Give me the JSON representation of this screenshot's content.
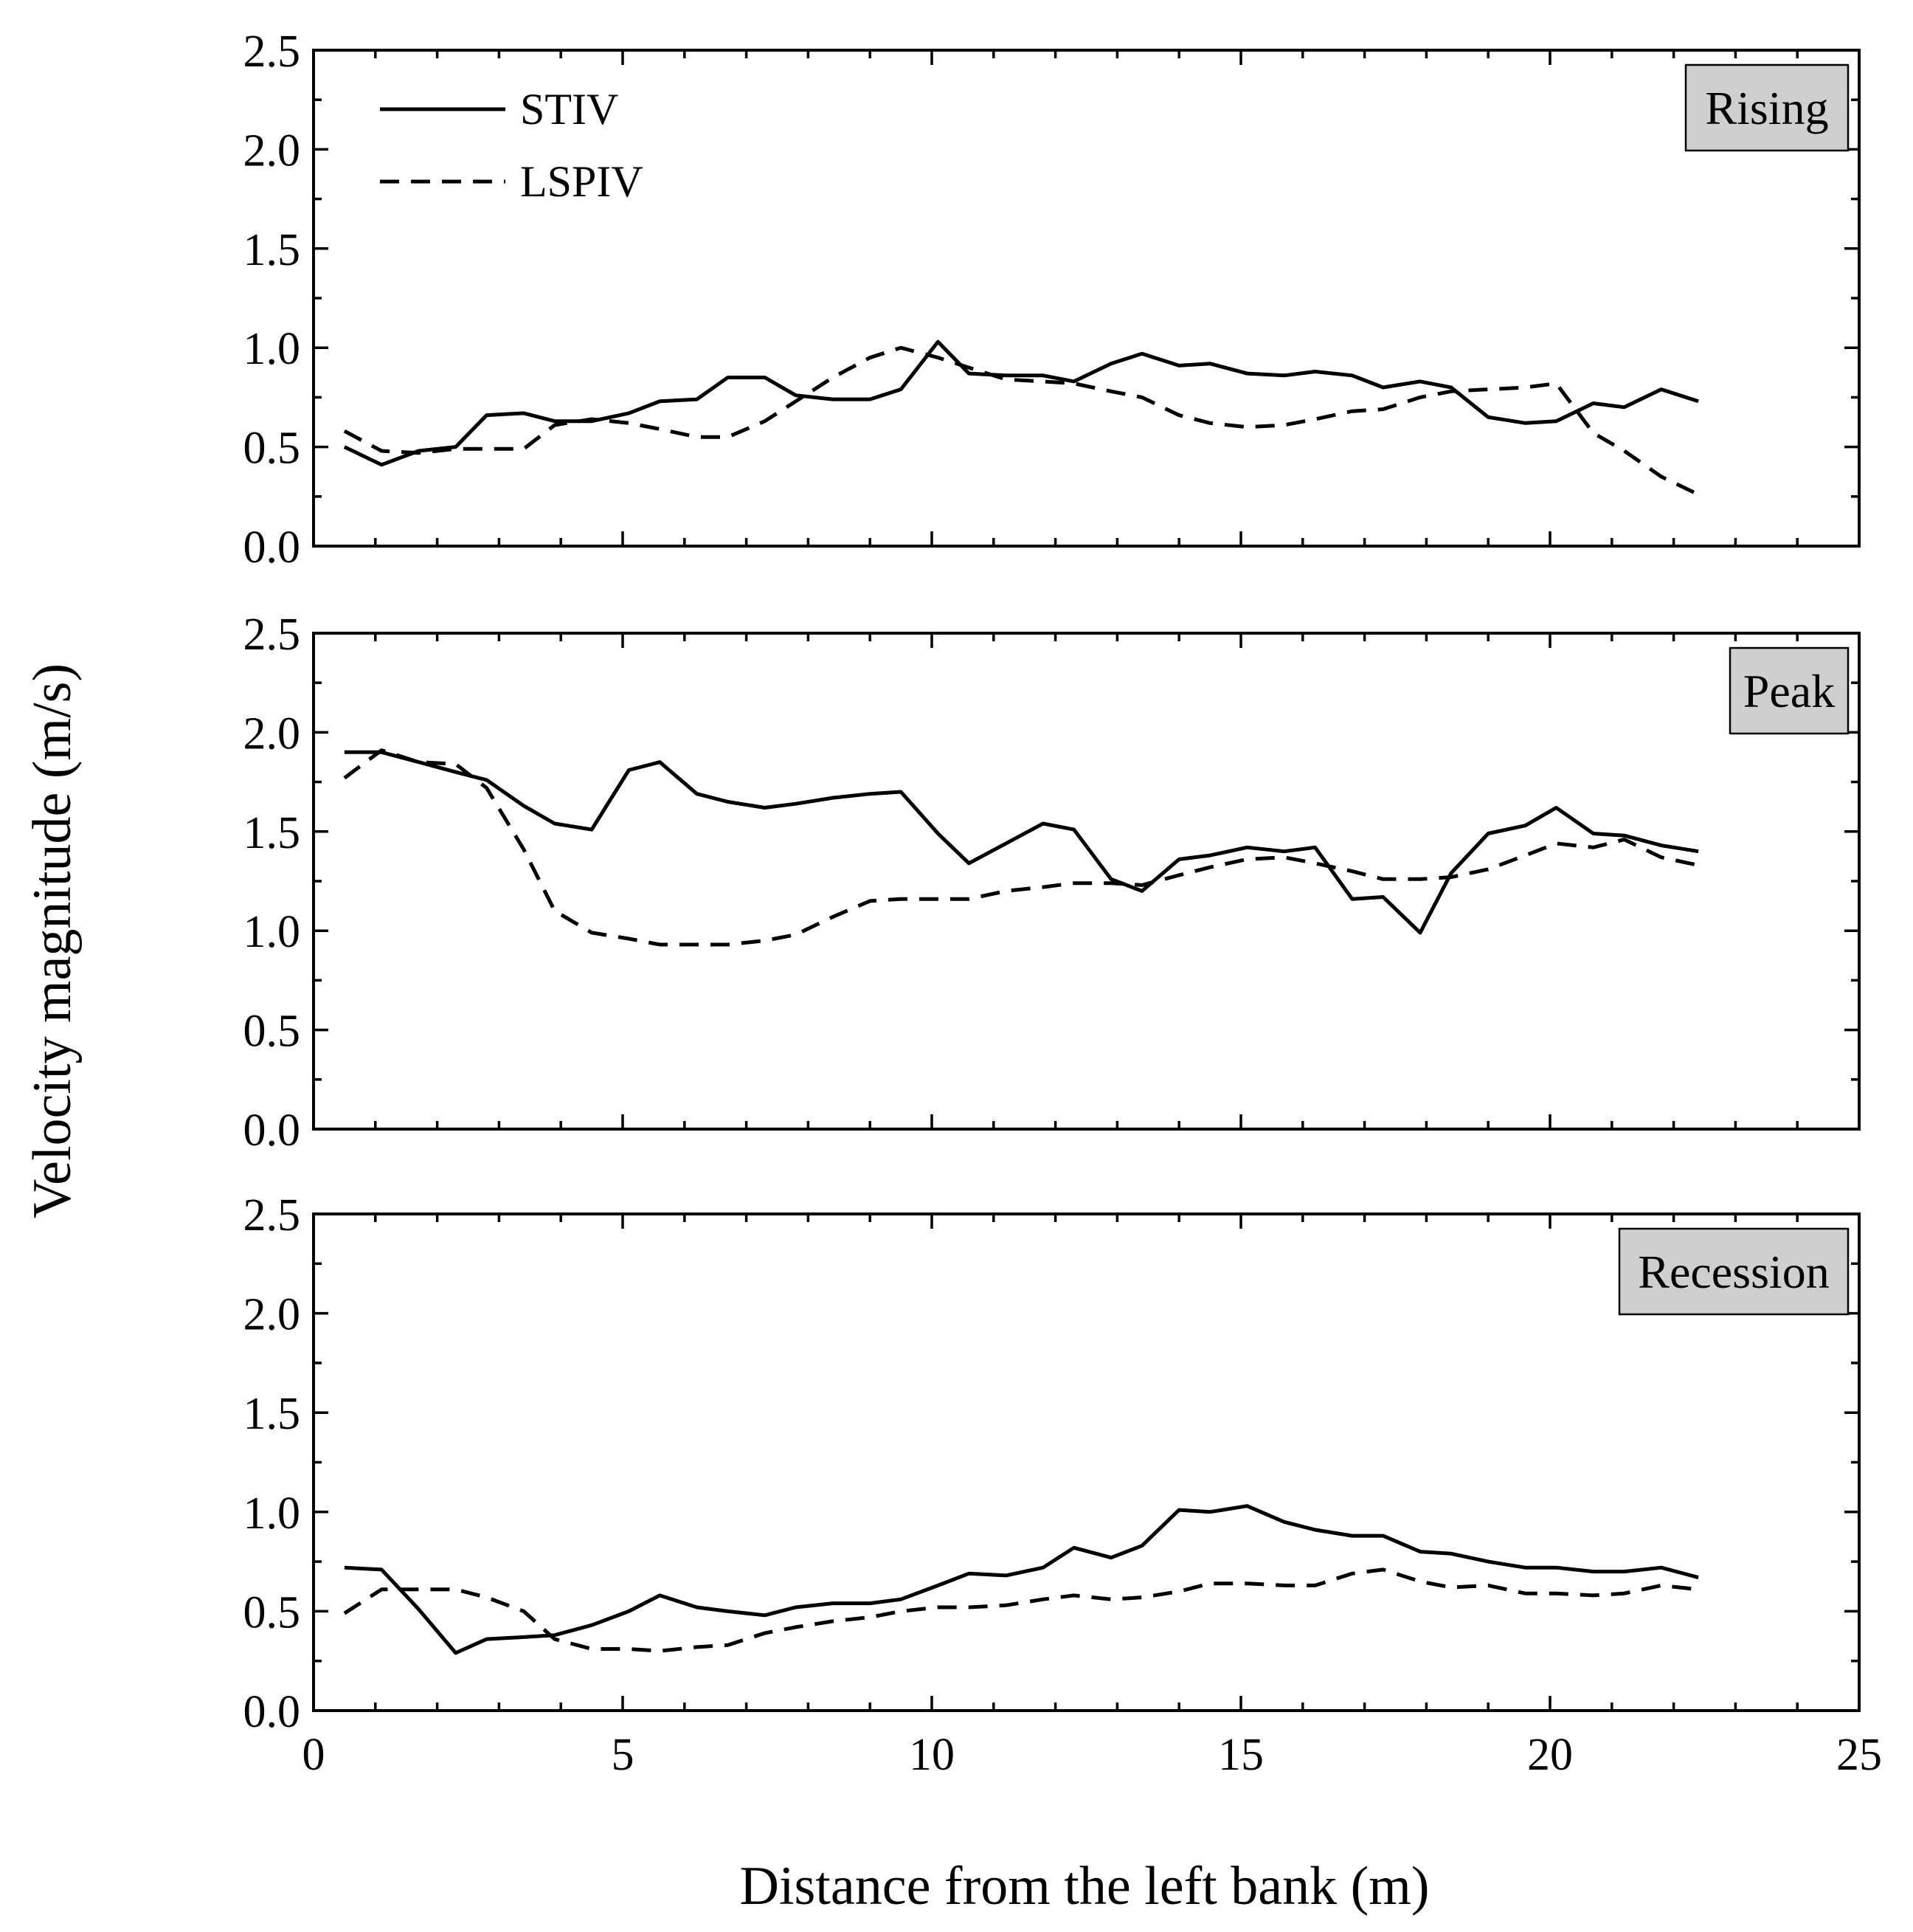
{
  "chart_data": {
    "type": "line",
    "ylabel": "Velocity magnitude (m/s)",
    "xlabel": "Distance from the left bank (m)",
    "xlim": [
      0,
      25
    ],
    "ylim": [
      0,
      2.5
    ],
    "x_ticks": [
      "0",
      "5",
      "10",
      "15",
      "20",
      "25"
    ],
    "y_ticks": [
      "0.0",
      "0.5",
      "1.0",
      "1.5",
      "2.0",
      "2.5"
    ],
    "legend": {
      "placement": "top-left",
      "entries": [
        {
          "name": "STIV",
          "style": "solid"
        },
        {
          "name": "LSPIV",
          "style": "dashed"
        }
      ]
    },
    "panels": [
      {
        "tag": "Rising",
        "series": [
          {
            "name": "STIV",
            "style": "solid",
            "points": [
              [
                0.5,
                0.5
              ],
              [
                1.1,
                0.41
              ],
              [
                1.7,
                0.48
              ],
              [
                2.3,
                0.5
              ],
              [
                2.8,
                0.66
              ],
              [
                3.4,
                0.67
              ],
              [
                3.9,
                0.63
              ],
              [
                4.5,
                0.63
              ],
              [
                5.1,
                0.67
              ],
              [
                5.6,
                0.73
              ],
              [
                6.2,
                0.74
              ],
              [
                6.7,
                0.85
              ],
              [
                7.3,
                0.85
              ],
              [
                7.8,
                0.76
              ],
              [
                8.4,
                0.74
              ],
              [
                9.0,
                0.74
              ],
              [
                9.5,
                0.79
              ],
              [
                10.1,
                1.03
              ],
              [
                10.6,
                0.87
              ],
              [
                11.2,
                0.86
              ],
              [
                11.8,
                0.86
              ],
              [
                12.3,
                0.83
              ],
              [
                12.9,
                0.92
              ],
              [
                13.4,
                0.97
              ],
              [
                14.0,
                0.91
              ],
              [
                14.5,
                0.92
              ],
              [
                15.1,
                0.87
              ],
              [
                15.7,
                0.86
              ],
              [
                16.2,
                0.88
              ],
              [
                16.8,
                0.86
              ],
              [
                17.3,
                0.8
              ],
              [
                17.9,
                0.83
              ],
              [
                18.4,
                0.8
              ],
              [
                19.0,
                0.65
              ],
              [
                19.6,
                0.62
              ],
              [
                20.1,
                0.63
              ],
              [
                20.7,
                0.72
              ],
              [
                21.2,
                0.7
              ],
              [
                21.8,
                0.79
              ],
              [
                22.4,
                0.73
              ]
            ]
          },
          {
            "name": "LSPIV",
            "style": "dashed",
            "points": [
              [
                0.5,
                0.58
              ],
              [
                1.1,
                0.48
              ],
              [
                1.7,
                0.47
              ],
              [
                2.3,
                0.49
              ],
              [
                2.8,
                0.49
              ],
              [
                3.4,
                0.49
              ],
              [
                3.9,
                0.61
              ],
              [
                4.5,
                0.64
              ],
              [
                5.1,
                0.62
              ],
              [
                5.6,
                0.59
              ],
              [
                6.2,
                0.55
              ],
              [
                6.7,
                0.55
              ],
              [
                7.3,
                0.63
              ],
              [
                7.8,
                0.73
              ],
              [
                8.4,
                0.85
              ],
              [
                9.0,
                0.95
              ],
              [
                9.5,
                1.0
              ],
              [
                10.1,
                0.95
              ],
              [
                10.6,
                0.9
              ],
              [
                11.2,
                0.84
              ],
              [
                11.8,
                0.83
              ],
              [
                12.3,
                0.82
              ],
              [
                12.9,
                0.78
              ],
              [
                13.4,
                0.75
              ],
              [
                14.0,
                0.66
              ],
              [
                14.5,
                0.62
              ],
              [
                15.1,
                0.6
              ],
              [
                15.7,
                0.61
              ],
              [
                16.2,
                0.64
              ],
              [
                16.8,
                0.68
              ],
              [
                17.3,
                0.69
              ],
              [
                17.9,
                0.75
              ],
              [
                18.4,
                0.78
              ],
              [
                19.0,
                0.79
              ],
              [
                19.6,
                0.8
              ],
              [
                20.1,
                0.82
              ],
              [
                20.7,
                0.57
              ],
              [
                21.2,
                0.48
              ],
              [
                21.8,
                0.35
              ],
              [
                22.4,
                0.26
              ]
            ]
          }
        ]
      },
      {
        "tag": "Peak",
        "series": [
          {
            "name": "STIV",
            "style": "solid",
            "points": [
              [
                0.5,
                1.9
              ],
              [
                1.1,
                1.9
              ],
              [
                1.7,
                1.85
              ],
              [
                2.3,
                1.8
              ],
              [
                2.8,
                1.76
              ],
              [
                3.4,
                1.63
              ],
              [
                3.9,
                1.54
              ],
              [
                4.5,
                1.51
              ],
              [
                5.1,
                1.81
              ],
              [
                5.6,
                1.85
              ],
              [
                6.2,
                1.69
              ],
              [
                6.7,
                1.65
              ],
              [
                7.3,
                1.62
              ],
              [
                7.8,
                1.64
              ],
              [
                8.4,
                1.67
              ],
              [
                9.0,
                1.69
              ],
              [
                9.5,
                1.7
              ],
              [
                10.1,
                1.49
              ],
              [
                10.6,
                1.34
              ],
              [
                11.2,
                1.44
              ],
              [
                11.8,
                1.54
              ],
              [
                12.3,
                1.51
              ],
              [
                12.9,
                1.26
              ],
              [
                13.4,
                1.2
              ],
              [
                14.0,
                1.36
              ],
              [
                14.5,
                1.38
              ],
              [
                15.1,
                1.42
              ],
              [
                15.7,
                1.4
              ],
              [
                16.2,
                1.42
              ],
              [
                16.8,
                1.16
              ],
              [
                17.3,
                1.17
              ],
              [
                17.9,
                0.99
              ],
              [
                18.4,
                1.29
              ],
              [
                19.0,
                1.49
              ],
              [
                19.6,
                1.53
              ],
              [
                20.1,
                1.62
              ],
              [
                20.7,
                1.49
              ],
              [
                21.2,
                1.48
              ],
              [
                21.8,
                1.43
              ],
              [
                22.4,
                1.4
              ]
            ]
          },
          {
            "name": "LSPIV",
            "style": "dashed",
            "points": [
              [
                0.5,
                1.77
              ],
              [
                1.1,
                1.91
              ],
              [
                1.7,
                1.85
              ],
              [
                2.3,
                1.84
              ],
              [
                2.8,
                1.72
              ],
              [
                3.4,
                1.41
              ],
              [
                3.9,
                1.1
              ],
              [
                4.5,
                0.99
              ],
              [
                5.1,
                0.96
              ],
              [
                5.6,
                0.93
              ],
              [
                6.2,
                0.93
              ],
              [
                6.7,
                0.93
              ],
              [
                7.3,
                0.95
              ],
              [
                7.8,
                0.98
              ],
              [
                8.4,
                1.07
              ],
              [
                9.0,
                1.15
              ],
              [
                9.5,
                1.16
              ],
              [
                10.1,
                1.16
              ],
              [
                10.6,
                1.16
              ],
              [
                11.2,
                1.2
              ],
              [
                11.8,
                1.22
              ],
              [
                12.3,
                1.24
              ],
              [
                12.9,
                1.24
              ],
              [
                13.4,
                1.23
              ],
              [
                14.0,
                1.28
              ],
              [
                14.5,
                1.32
              ],
              [
                15.1,
                1.36
              ],
              [
                15.7,
                1.37
              ],
              [
                16.2,
                1.34
              ],
              [
                16.8,
                1.3
              ],
              [
                17.3,
                1.26
              ],
              [
                17.9,
                1.26
              ],
              [
                18.4,
                1.27
              ],
              [
                19.0,
                1.31
              ],
              [
                19.6,
                1.38
              ],
              [
                20.1,
                1.44
              ],
              [
                20.7,
                1.42
              ],
              [
                21.2,
                1.46
              ],
              [
                21.8,
                1.37
              ],
              [
                22.4,
                1.33
              ]
            ]
          }
        ]
      },
      {
        "tag": "Recession",
        "series": [
          {
            "name": "STIV",
            "style": "solid",
            "points": [
              [
                0.5,
                0.72
              ],
              [
                1.1,
                0.71
              ],
              [
                1.7,
                0.51
              ],
              [
                2.3,
                0.29
              ],
              [
                2.8,
                0.36
              ],
              [
                3.4,
                0.37
              ],
              [
                3.9,
                0.38
              ],
              [
                4.5,
                0.43
              ],
              [
                5.1,
                0.5
              ],
              [
                5.6,
                0.58
              ],
              [
                6.2,
                0.52
              ],
              [
                6.7,
                0.5
              ],
              [
                7.3,
                0.48
              ],
              [
                7.8,
                0.52
              ],
              [
                8.4,
                0.54
              ],
              [
                9.0,
                0.54
              ],
              [
                9.5,
                0.56
              ],
              [
                10.1,
                0.63
              ],
              [
                10.6,
                0.69
              ],
              [
                11.2,
                0.68
              ],
              [
                11.8,
                0.72
              ],
              [
                12.3,
                0.82
              ],
              [
                12.9,
                0.77
              ],
              [
                13.4,
                0.83
              ],
              [
                14.0,
                1.01
              ],
              [
                14.5,
                1.0
              ],
              [
                15.1,
                1.03
              ],
              [
                15.7,
                0.95
              ],
              [
                16.2,
                0.91
              ],
              [
                16.8,
                0.88
              ],
              [
                17.3,
                0.88
              ],
              [
                17.9,
                0.8
              ],
              [
                18.4,
                0.79
              ],
              [
                19.0,
                0.75
              ],
              [
                19.6,
                0.72
              ],
              [
                20.1,
                0.72
              ],
              [
                20.7,
                0.7
              ],
              [
                21.2,
                0.7
              ],
              [
                21.8,
                0.72
              ],
              [
                22.4,
                0.67
              ]
            ]
          },
          {
            "name": "LSPIV",
            "style": "dashed",
            "points": [
              [
                0.5,
                0.49
              ],
              [
                1.1,
                0.61
              ],
              [
                1.7,
                0.61
              ],
              [
                2.3,
                0.61
              ],
              [
                2.8,
                0.57
              ],
              [
                3.4,
                0.5
              ],
              [
                3.9,
                0.36
              ],
              [
                4.5,
                0.31
              ],
              [
                5.1,
                0.31
              ],
              [
                5.6,
                0.3
              ],
              [
                6.2,
                0.32
              ],
              [
                6.7,
                0.33
              ],
              [
                7.3,
                0.39
              ],
              [
                7.8,
                0.42
              ],
              [
                8.4,
                0.45
              ],
              [
                9.0,
                0.47
              ],
              [
                9.5,
                0.5
              ],
              [
                10.1,
                0.52
              ],
              [
                10.6,
                0.52
              ],
              [
                11.2,
                0.53
              ],
              [
                11.8,
                0.56
              ],
              [
                12.3,
                0.58
              ],
              [
                12.9,
                0.56
              ],
              [
                13.4,
                0.57
              ],
              [
                14.0,
                0.6
              ],
              [
                14.5,
                0.64
              ],
              [
                15.1,
                0.64
              ],
              [
                15.7,
                0.63
              ],
              [
                16.2,
                0.63
              ],
              [
                16.8,
                0.69
              ],
              [
                17.3,
                0.71
              ],
              [
                17.9,
                0.65
              ],
              [
                18.4,
                0.62
              ],
              [
                19.0,
                0.63
              ],
              [
                19.6,
                0.59
              ],
              [
                20.1,
                0.59
              ],
              [
                20.7,
                0.58
              ],
              [
                21.2,
                0.59
              ],
              [
                21.8,
                0.63
              ],
              [
                22.4,
                0.61
              ]
            ]
          }
        ]
      }
    ]
  }
}
